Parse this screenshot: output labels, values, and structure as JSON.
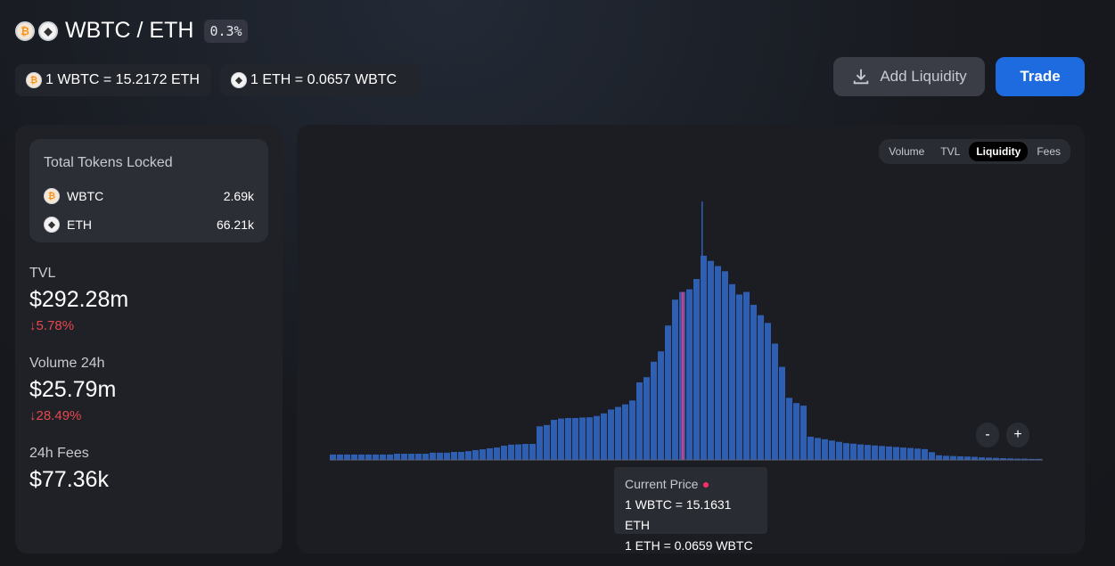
{
  "header": {
    "pair": "WBTC / ETH",
    "fee_tier": "0.3%",
    "token0_icon": "bitcoin-icon",
    "token1_icon": "ethereum-icon"
  },
  "rates": {
    "rate0": "1 WBTC = 15.2172 ETH",
    "rate1": "1 ETH = 0.0657 WBTC"
  },
  "actions": {
    "add_liquidity": "Add Liquidity",
    "trade": "Trade"
  },
  "tokens_locked": {
    "title": "Total Tokens Locked",
    "items": [
      {
        "symbol": "WBTC",
        "amount": "2.69k"
      },
      {
        "symbol": "ETH",
        "amount": "66.21k"
      }
    ]
  },
  "stats": {
    "tvl": {
      "label": "TVL",
      "value": "$292.28m",
      "change": "↓5.78%"
    },
    "volume": {
      "label": "Volume 24h",
      "value": "$25.79m",
      "change": "↓28.49%"
    },
    "fees": {
      "label": "24h Fees",
      "value": "$77.36k"
    }
  },
  "chart_tabs": [
    "Volume",
    "TVL",
    "Liquidity",
    "Fees"
  ],
  "active_tab": "Liquidity",
  "zoom": {
    "out": "-",
    "in": "+"
  },
  "tooltip": {
    "title": "Current Price",
    "line1": "1 WBTC = 15.1631 ETH",
    "line2": "1 ETH = 0.0659 WBTC"
  },
  "colors": {
    "bar": "#2f5fb3",
    "current_price": "#ff2d6f",
    "accent": "#1e6be0",
    "negative": "#e5484d"
  },
  "chart_data": {
    "type": "bar",
    "title": "",
    "ylim": [
      0,
      100
    ],
    "values": [
      2.1,
      2.1,
      2.1,
      2.1,
      2.1,
      2.1,
      2.1,
      2.1,
      2.1,
      2.4,
      2.4,
      2.4,
      2.4,
      2.4,
      2.8,
      2.8,
      2.8,
      3.1,
      3.1,
      3.4,
      3.8,
      4.1,
      4.5,
      4.8,
      5.5,
      5.9,
      6.0,
      6.2,
      6.2,
      13,
      13.5,
      15.5,
      16,
      16.2,
      16.2,
      16.4,
      16.5,
      17,
      18,
      19.5,
      20.5,
      21.5,
      23,
      30,
      32,
      38,
      42,
      52,
      62,
      65,
      66,
      70,
      79,
      77,
      75,
      73,
      68,
      64,
      65,
      60,
      56,
      53,
      45,
      36,
      24,
      22,
      21,
      9,
      8.5,
      8,
      7.5,
      7,
      6.5,
      6.3,
      6,
      5.8,
      5.6,
      5.4,
      5.2,
      5,
      4.8,
      4.6,
      4.4,
      4.2,
      3.0,
      1.8,
      1.6,
      1.5,
      1.4,
      1.3,
      1.2,
      1,
      0.9,
      0.8,
      0.7,
      0.6,
      0.5,
      0.5,
      0.4,
      0.4
    ],
    "spike_index": 52,
    "spike_value": 100,
    "current_price_index": 49
  }
}
